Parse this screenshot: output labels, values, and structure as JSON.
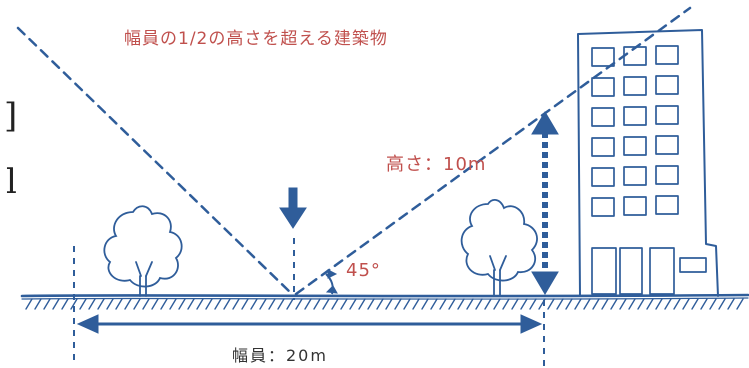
{
  "labels": {
    "title": "幅員の1/2の高さを超える建築物",
    "height": "高さ：10m",
    "angle": "45°",
    "width": "幅員：20m",
    "edge_glyph_1": "]",
    "edge_glyph_2": "l"
  },
  "colors": {
    "ink": "#2f5d9a",
    "label_red": "#c0504d",
    "text_dark": "#333333",
    "background": "#ffffff"
  }
}
